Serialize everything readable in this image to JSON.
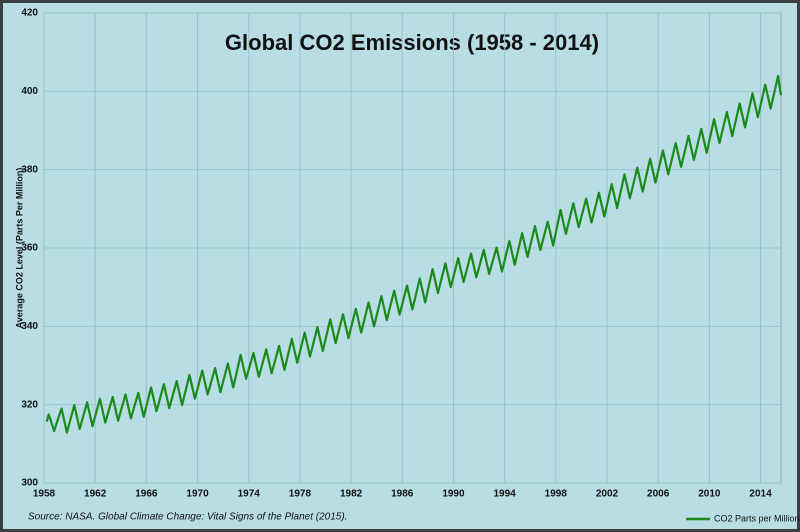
{
  "chart_data": {
    "type": "line",
    "title": "Global CO2 Emissions (1958 - 2014)",
    "y_label": "Average CO2 Level (Parts Per Million)",
    "source": "Source: NASA. Global Climate Change: Vital Signs of the Planet (2015).",
    "x": [
      1958.21,
      1958.37,
      1958.79,
      1959.37,
      1959.79,
      1960.37,
      1960.79,
      1961.37,
      1961.79,
      1962.37,
      1962.79,
      1963.37,
      1963.79,
      1964.37,
      1964.79,
      1965.37,
      1965.79,
      1966.37,
      1966.79,
      1967.37,
      1967.79,
      1968.37,
      1968.79,
      1969.37,
      1969.79,
      1970.37,
      1970.79,
      1971.37,
      1971.79,
      1972.37,
      1972.79,
      1973.37,
      1973.79,
      1974.37,
      1974.79,
      1975.37,
      1975.79,
      1976.37,
      1976.79,
      1977.37,
      1977.79,
      1978.37,
      1978.79,
      1979.37,
      1979.79,
      1980.37,
      1980.79,
      1981.37,
      1981.79,
      1982.37,
      1982.79,
      1983.37,
      1983.79,
      1984.37,
      1984.79,
      1985.37,
      1985.79,
      1986.37,
      1986.79,
      1987.37,
      1987.79,
      1988.37,
      1988.79,
      1989.37,
      1989.79,
      1990.37,
      1990.79,
      1991.37,
      1991.79,
      1992.37,
      1992.79,
      1993.37,
      1993.79,
      1994.37,
      1994.79,
      1995.37,
      1995.79,
      1996.37,
      1996.79,
      1997.37,
      1997.79,
      1998.37,
      1998.79,
      1999.37,
      1999.79,
      2000.37,
      2000.79,
      2001.37,
      2001.79,
      2002.37,
      2002.79,
      2003.37,
      2003.79,
      2004.37,
      2004.79,
      2005.37,
      2005.79,
      2006.37,
      2006.79,
      2007.37,
      2007.79,
      2008.37,
      2008.79,
      2009.37,
      2009.79,
      2010.37,
      2010.79,
      2011.37,
      2011.79,
      2012.37,
      2012.79,
      2013.37,
      2013.79,
      2014.37,
      2014.79,
      2015.37,
      2015.6
    ],
    "series": [
      {
        "name": "CO2 Parts per Million",
        "color": "#1a8a1a",
        "values": [
          315.7,
          317.5,
          313.3,
          319.0,
          312.9,
          319.9,
          313.8,
          320.6,
          314.5,
          321.5,
          315.4,
          322.0,
          315.9,
          322.6,
          316.5,
          323.0,
          316.9,
          324.4,
          318.3,
          325.2,
          319.1,
          326.0,
          319.9,
          327.6,
          321.5,
          328.7,
          322.6,
          329.3,
          323.2,
          330.5,
          324.4,
          332.7,
          326.6,
          333.2,
          327.1,
          334.1,
          328.0,
          335.0,
          328.9,
          336.8,
          330.7,
          338.4,
          332.3,
          339.8,
          333.7,
          341.8,
          335.7,
          343.1,
          337.0,
          344.5,
          338.4,
          346.1,
          340.0,
          347.7,
          341.6,
          349.1,
          343.0,
          350.4,
          344.3,
          352.2,
          346.1,
          354.6,
          348.5,
          356.1,
          350.0,
          357.4,
          351.3,
          358.6,
          352.5,
          359.5,
          353.4,
          360.1,
          354.0,
          361.8,
          355.7,
          363.8,
          357.7,
          365.6,
          359.5,
          366.7,
          360.6,
          369.7,
          363.6,
          371.4,
          365.3,
          372.6,
          366.5,
          374.1,
          368.0,
          376.3,
          370.2,
          378.8,
          372.7,
          380.5,
          374.4,
          382.8,
          376.7,
          384.9,
          378.8,
          386.8,
          380.7,
          388.6,
          382.5,
          390.4,
          384.3,
          392.9,
          386.8,
          394.7,
          388.6,
          396.9,
          390.8,
          399.5,
          393.4,
          401.7,
          395.6,
          403.9,
          399.0
        ]
      }
    ],
    "xlim": [
      1958,
      2015.6
    ],
    "xticks": [
      1958,
      1962,
      1966,
      1970,
      1974,
      1978,
      1982,
      1986,
      1990,
      1994,
      1998,
      2002,
      2006,
      2010,
      2014
    ],
    "ylim": [
      300,
      420
    ],
    "yticks": [
      300,
      320,
      340,
      360,
      380,
      400,
      420
    ],
    "grid": true,
    "legend": "bottom-right"
  }
}
